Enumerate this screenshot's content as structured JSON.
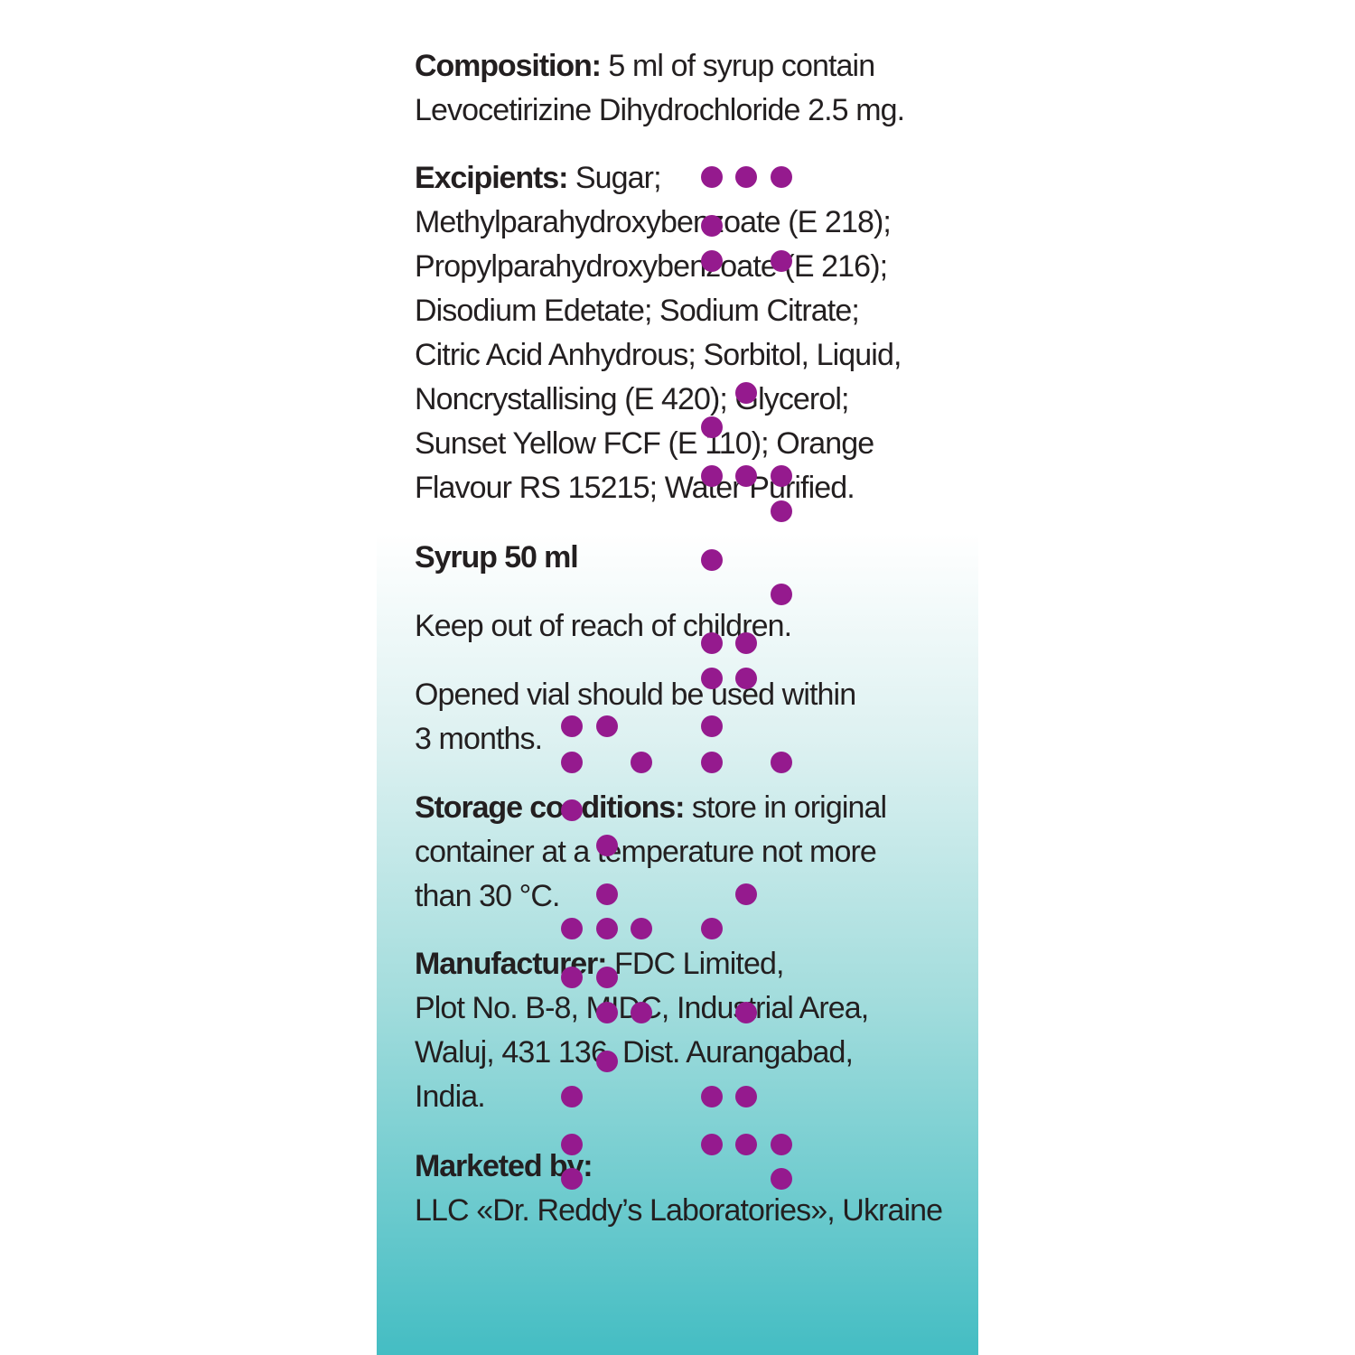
{
  "composition": {
    "label": "Composition:",
    "text": " 5 ml of syrup contain\nLevocetirizine Dihydrochloride 2.5 mg."
  },
  "excipients": {
    "label": "Excipients:",
    "text": " Sugar;\nMethylparahydroxybenzoate (E 218);\nPropylparahydroxybenzoate (E 216);\nDisodium Edetate; Sodium Citrate;\nCitric Acid Anhydrous; Sorbitol, Liquid,\nNoncrystallising (E 420); Glycerol;\nSunset Yellow FCF (E 110); Orange\nFlavour RS 15215; Water Purified."
  },
  "volume": "Syrup 50 ml",
  "warning": "Keep out of reach of children.",
  "shelf_life": "Opened vial should be used within\n3 months.",
  "storage": {
    "label": "Storage conditions:",
    "text": " store in original\ncontainer at a temperature not more\nthan 30 °C."
  },
  "manufacturer": {
    "label": "Manufacturer:",
    "text": " FDC Limited,\nPlot No. B-8, MIDC, Industrial Area,\nWaluj, 431 136, Dist. Aurangabad,\nIndia."
  },
  "marketed_by": {
    "label": "Marketed by:",
    "text": "LLC «Dr. Reddy’s Laboratories», Ukraine"
  },
  "colors": {
    "braille_dots": "#951a8e",
    "panel_gradient_end": "#44bdc3",
    "text": "#231f20"
  }
}
